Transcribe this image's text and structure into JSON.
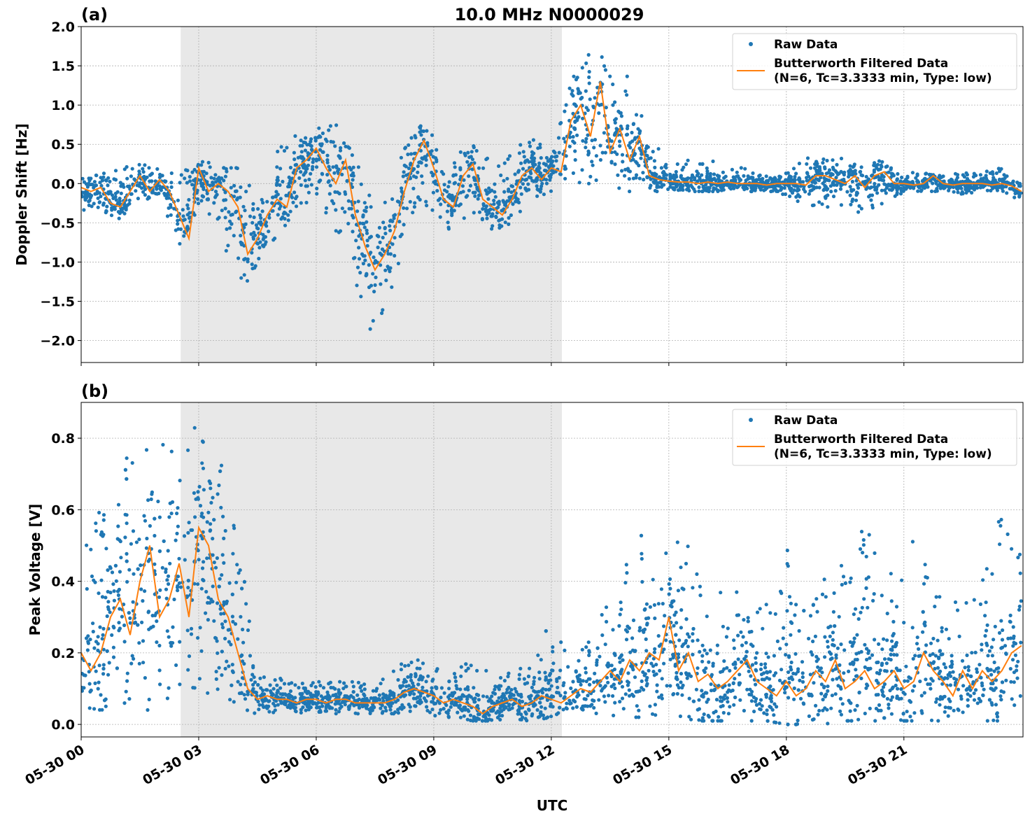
{
  "title": "10.0 MHz N0000029",
  "xlabel": "UTC",
  "colors": {
    "raw": "#1f77b4",
    "filtered": "#ff7f0e",
    "shade": "#e8e8e8",
    "grid": "#b0b0b0"
  },
  "legend": {
    "raw": "Raw Data",
    "filtered_line1": "Butterworth Filtered Data",
    "filtered_line2": "(N=6, Tc=3.3333 min, Type: low)",
    "placement": "top-right"
  },
  "x_ticks": {
    "hours": [
      0,
      3,
      6,
      9,
      12,
      15,
      18,
      21
    ],
    "labels": [
      "05-30 00",
      "05-30 03",
      "05-30 06",
      "05-30 09",
      "05-30 12",
      "05-30 15",
      "05-30 18",
      "05-30 21"
    ]
  },
  "chart_data": [
    {
      "type": "scatter",
      "panel_label": "(a)",
      "ylabel": "Doppler Shift [Hz]",
      "xlim_hours": [
        0,
        24.04
      ],
      "ylim": [
        -2.28,
        2.0
      ],
      "y_ticks": [
        2.0,
        1.5,
        1.0,
        0.5,
        0.0,
        -0.5,
        -1.0,
        -1.5,
        -2.0
      ],
      "y_tick_labels": [
        "2.0",
        "1.5",
        "1.0",
        "0.5",
        "0.0",
        "−0.5",
        "−1.0",
        "−1.5",
        "−2.0"
      ],
      "grid": true,
      "shaded_interval_hours": [
        2.54,
        12.27
      ],
      "filtered_step_hours": 0.25,
      "filtered": [
        -0.05,
        -0.1,
        -0.05,
        -0.25,
        -0.3,
        -0.1,
        0.1,
        -0.1,
        0.05,
        -0.1,
        -0.4,
        -0.7,
        0.2,
        -0.1,
        0.0,
        -0.1,
        -0.3,
        -0.9,
        -0.7,
        -0.4,
        -0.2,
        -0.3,
        0.2,
        0.3,
        0.45,
        0.2,
        0.0,
        0.3,
        -0.4,
        -0.8,
        -1.1,
        -0.9,
        -0.6,
        -0.1,
        0.3,
        0.55,
        0.2,
        -0.2,
        -0.3,
        0.1,
        0.25,
        -0.2,
        -0.3,
        -0.4,
        -0.2,
        0.1,
        0.2,
        0.05,
        0.2,
        0.15,
        0.8,
        1.0,
        0.6,
        1.3,
        0.4,
        0.7,
        0.3,
        0.6,
        0.1,
        0.05,
        0.03,
        0.02,
        0.02,
        0.0,
        0.02,
        0.0,
        0.02,
        0.0,
        0.0,
        0.0,
        -0.02,
        0.0,
        0.0,
        0.0,
        -0.02,
        0.1,
        0.1,
        0.05,
        0.0,
        0.1,
        -0.05,
        0.1,
        0.15,
        0.0,
        0.0,
        -0.02,
        0.0,
        0.1,
        0.0,
        -0.02,
        0.0,
        0.0,
        0.0,
        -0.02,
        0.0,
        -0.03,
        -0.1
      ],
      "raw_envelope_step_hours": 0.5,
      "raw_low": [
        -0.4,
        -0.35,
        -0.45,
        -0.2,
        -0.2,
        -0.8,
        -0.3,
        -0.5,
        -1.5,
        -1.0,
        -0.7,
        -0.3,
        -0.2,
        -0.6,
        -1.3,
        -2.05,
        -1.2,
        -0.4,
        -0.5,
        -0.6,
        -0.4,
        -0.6,
        -0.5,
        -0.2,
        -0.1,
        0.0,
        0.0,
        -0.1,
        -0.1,
        -0.1,
        -0.1,
        -0.1,
        -0.1,
        -0.1,
        -0.1,
        -0.1,
        -0.15,
        -0.3,
        -0.3,
        -0.3,
        -0.4,
        -0.3,
        -0.1,
        -0.1,
        -0.1,
        -0.15,
        -0.1,
        -0.1,
        -0.25
      ],
      "raw_high": [
        0.15,
        0.15,
        0.2,
        0.25,
        0.2,
        0.1,
        0.35,
        0.2,
        0.2,
        0.2,
        0.45,
        0.75,
        0.7,
        0.8,
        0.3,
        -0.1,
        0.4,
        0.8,
        0.6,
        0.4,
        0.5,
        0.3,
        0.5,
        0.6,
        0.4,
        1.4,
        1.8,
        1.5,
        1.4,
        0.7,
        0.3,
        0.3,
        0.35,
        0.2,
        0.2,
        0.1,
        0.15,
        0.35,
        0.45,
        0.3,
        0.25,
        0.3,
        0.1,
        0.2,
        0.1,
        0.15,
        0.15,
        0.2,
        0.0
      ]
    },
    {
      "type": "scatter",
      "panel_label": "(b)",
      "ylabel": "Peak Voltage [V]",
      "xlim_hours": [
        0,
        24.04
      ],
      "ylim": [
        -0.035,
        0.9
      ],
      "y_ticks": [
        0.8,
        0.6,
        0.4,
        0.2,
        0.0
      ],
      "y_tick_labels": [
        "0.8",
        "0.6",
        "0.4",
        "0.2",
        "0.0"
      ],
      "grid": true,
      "shaded_interval_hours": [
        2.54,
        12.27
      ],
      "filtered_step_hours": 0.25,
      "filtered": [
        0.2,
        0.15,
        0.2,
        0.3,
        0.35,
        0.25,
        0.4,
        0.5,
        0.3,
        0.35,
        0.45,
        0.3,
        0.55,
        0.5,
        0.35,
        0.3,
        0.2,
        0.1,
        0.07,
        0.08,
        0.07,
        0.07,
        0.06,
        0.07,
        0.07,
        0.06,
        0.07,
        0.07,
        0.06,
        0.06,
        0.06,
        0.06,
        0.07,
        0.09,
        0.1,
        0.09,
        0.08,
        0.06,
        0.07,
        0.06,
        0.05,
        0.03,
        0.05,
        0.06,
        0.07,
        0.05,
        0.06,
        0.08,
        0.07,
        0.06,
        0.08,
        0.1,
        0.09,
        0.12,
        0.15,
        0.12,
        0.18,
        0.15,
        0.2,
        0.18,
        0.3,
        0.15,
        0.2,
        0.12,
        0.14,
        0.1,
        0.12,
        0.15,
        0.18,
        0.12,
        0.1,
        0.08,
        0.12,
        0.08,
        0.1,
        0.15,
        0.12,
        0.18,
        0.1,
        0.12,
        0.15,
        0.1,
        0.12,
        0.15,
        0.1,
        0.12,
        0.2,
        0.15,
        0.12,
        0.08,
        0.15,
        0.1,
        0.15,
        0.12,
        0.15,
        0.2,
        0.22
      ],
      "raw_envelope_step_hours": 0.5,
      "raw_low": [
        0.05,
        0.04,
        0.05,
        0.02,
        0.05,
        0.1,
        0.1,
        0.05,
        0.04,
        0.03,
        0.03,
        0.03,
        0.03,
        0.03,
        0.03,
        0.03,
        0.03,
        0.03,
        0.02,
        0.02,
        0.01,
        0.01,
        0.01,
        0.01,
        0.02,
        0.02,
        0.02,
        0.02,
        0.02,
        0.02,
        0.02,
        0.01,
        0.01,
        0.01,
        0.01,
        0.01,
        0.0,
        0.0,
        0.0,
        0.01,
        0.01,
        0.01,
        0.01,
        0.01,
        0.01,
        0.01,
        0.01,
        0.01,
        0.02
      ],
      "raw_high": [
        0.55,
        0.6,
        0.7,
        0.85,
        0.8,
        0.75,
        0.85,
        0.8,
        0.6,
        0.15,
        0.13,
        0.12,
        0.12,
        0.12,
        0.12,
        0.11,
        0.16,
        0.2,
        0.17,
        0.16,
        0.2,
        0.14,
        0.16,
        0.17,
        0.32,
        0.2,
        0.25,
        0.35,
        0.5,
        0.55,
        0.65,
        0.5,
        0.45,
        0.35,
        0.4,
        0.35,
        0.5,
        0.4,
        0.45,
        0.45,
        0.65,
        0.4,
        0.5,
        0.55,
        0.35,
        0.35,
        0.4,
        0.6,
        0.5
      ]
    }
  ]
}
